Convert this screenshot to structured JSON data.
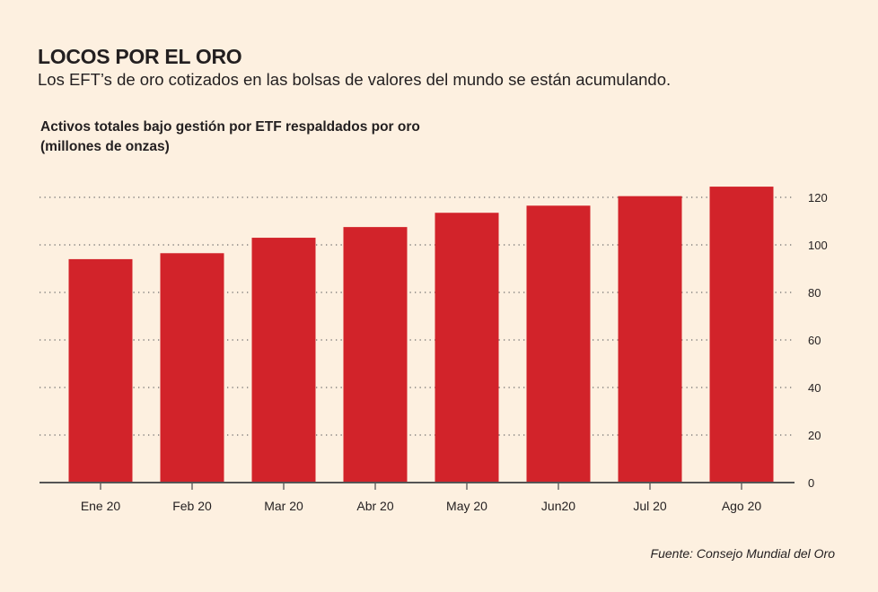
{
  "header": {
    "title": "LOCOS POR EL ORO",
    "subtitle": "Los EFT’s de oro cotizados en las bolsas de valores del mundo se están acumulando."
  },
  "chart_data": {
    "type": "bar",
    "title_lines": [
      "Activos totales bajo gestión por ETF respaldados por oro",
      "(millones de onzas)"
    ],
    "categories": [
      "Ene 20",
      "Feb 20",
      "Mar 20",
      "Abr 20",
      "May 20",
      "Jun20",
      "Jul 20",
      "Ago 20"
    ],
    "values": [
      94,
      96.5,
      103,
      107.5,
      113.5,
      116.5,
      120.5,
      124.5
    ],
    "yticks": [
      0,
      20,
      40,
      60,
      80,
      100,
      120
    ],
    "ylim": [
      0,
      120
    ],
    "y_axis_side": "right",
    "grid": "dotted-horizontal",
    "bar_color": "#d2232a",
    "source": "Fuente: Consejo Mundial del Oro"
  }
}
